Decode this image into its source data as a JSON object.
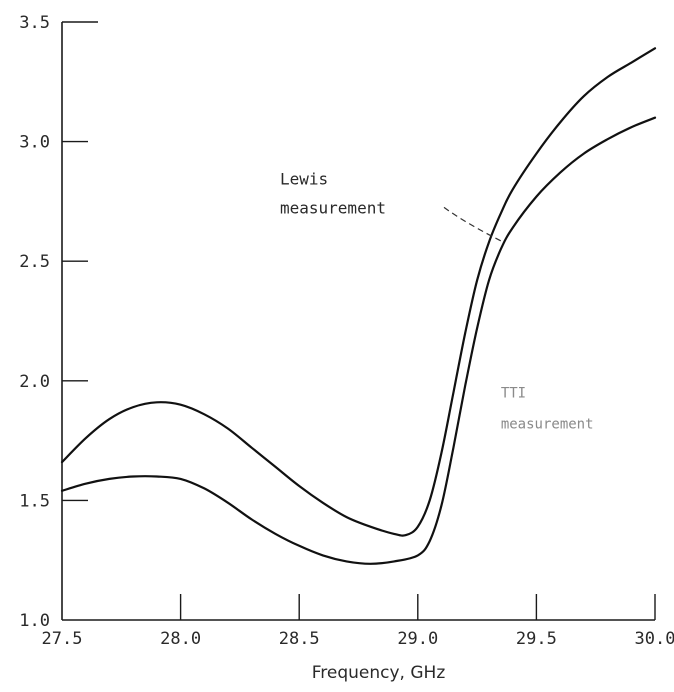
{
  "chart_data": {
    "type": "line",
    "title": "",
    "xlabel": "Frequency, GHz",
    "ylabel": "",
    "xlim": [
      27.5,
      30.0
    ],
    "ylim": [
      1.0,
      3.5
    ],
    "x_ticks": [
      {
        "value": 27.5,
        "label": "27.5"
      },
      {
        "value": 28.0,
        "label": "28.0"
      },
      {
        "value": 28.5,
        "label": "28.5"
      },
      {
        "value": 29.0,
        "label": "29.0"
      },
      {
        "value": 29.5,
        "label": "29.5"
      },
      {
        "value": 30.0,
        "label": "30.0"
      }
    ],
    "y_ticks": [
      {
        "value": 1.0,
        "label": "1.0"
      },
      {
        "value": 1.5,
        "label": "1.5"
      },
      {
        "value": 2.0,
        "label": "2.0"
      },
      {
        "value": 2.5,
        "label": "2.5"
      },
      {
        "value": 3.0,
        "label": "3.0"
      },
      {
        "value": 3.5,
        "label": "3.5"
      }
    ],
    "grid": false,
    "series": [
      {
        "name": "Lewis measurement",
        "x": [
          27.5,
          27.6,
          27.7,
          27.8,
          27.9,
          28.0,
          28.1,
          28.2,
          28.3,
          28.4,
          28.5,
          28.6,
          28.7,
          28.8,
          28.9,
          28.95,
          29.0,
          29.05,
          29.1,
          29.15,
          29.2,
          29.25,
          29.3,
          29.35,
          29.4,
          29.5,
          29.6,
          29.7,
          29.8,
          29.9,
          30.0
        ],
        "values": [
          1.66,
          1.76,
          1.84,
          1.89,
          1.91,
          1.9,
          1.86,
          1.8,
          1.72,
          1.64,
          1.56,
          1.49,
          1.43,
          1.39,
          1.36,
          1.355,
          1.39,
          1.5,
          1.7,
          1.95,
          2.2,
          2.42,
          2.58,
          2.7,
          2.8,
          2.95,
          3.08,
          3.19,
          3.27,
          3.33,
          3.39
        ]
      },
      {
        "name": "TTI measurement",
        "x": [
          27.5,
          27.6,
          27.7,
          27.8,
          27.9,
          28.0,
          28.1,
          28.2,
          28.3,
          28.4,
          28.5,
          28.6,
          28.7,
          28.8,
          28.9,
          29.0,
          29.05,
          29.1,
          29.15,
          29.2,
          29.25,
          29.3,
          29.35,
          29.4,
          29.5,
          29.6,
          29.7,
          29.8,
          29.9,
          30.0
        ],
        "values": [
          1.54,
          1.57,
          1.59,
          1.6,
          1.6,
          1.59,
          1.55,
          1.49,
          1.42,
          1.36,
          1.31,
          1.27,
          1.245,
          1.235,
          1.245,
          1.27,
          1.33,
          1.48,
          1.72,
          1.98,
          2.22,
          2.42,
          2.55,
          2.64,
          2.77,
          2.87,
          2.95,
          3.01,
          3.06,
          3.1
        ]
      }
    ],
    "annotations": [
      {
        "line1": "Lewis",
        "line2": "measurement",
        "series": "Lewis measurement"
      },
      {
        "line1": "TTI",
        "line2": "measurement",
        "series": "TTI measurement"
      }
    ]
  }
}
